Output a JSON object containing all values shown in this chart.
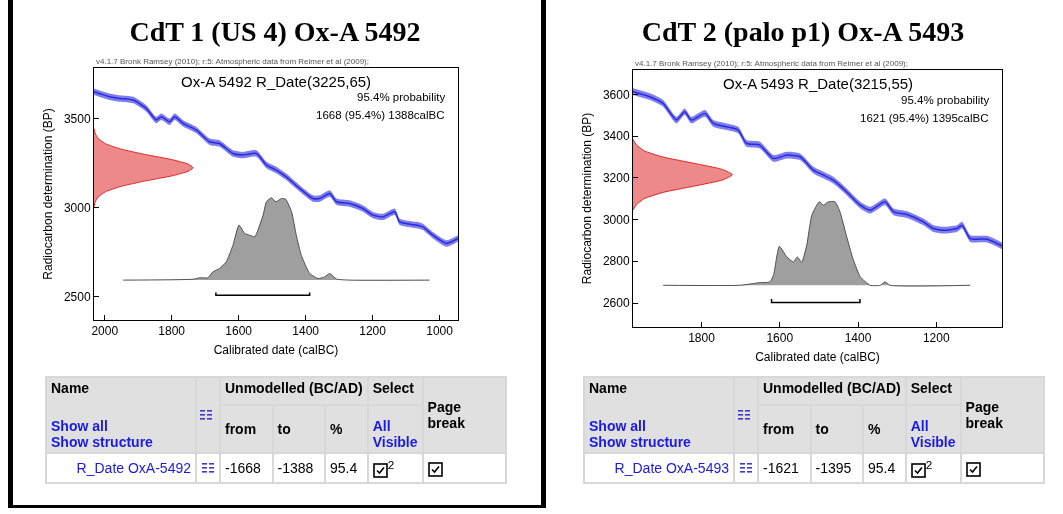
{
  "chart_data": [
    {
      "type": "line",
      "title": "CdT 1 (US 4) Ox-A 5492",
      "xlabel": "Calibrated date (calBC)",
      "ylabel": "Radiocarbon determination (BP)",
      "annotations": [
        "v4.1.7 Bronk Ramsey (2010); r:5: Atmospheric data from Reimer et al (2009);",
        "Ox-A 5492 R_Date(3225,65)",
        "95.4% probability",
        "1668 (95.4%) 1388calBC"
      ],
      "xlim": [
        2032,
        945
      ],
      "ylim": [
        2370,
        3785
      ],
      "xticks": [
        2000,
        1800,
        1600,
        1400,
        1200,
        1000
      ],
      "yticks": [
        2500,
        3000,
        3500
      ],
      "series": [
        {
          "type": "line",
          "color": "#2a2ae0",
          "x": [
            2032,
            1985,
            1955,
            1915,
            1876,
            1846,
            1831,
            1806,
            1791,
            1766,
            1726,
            1687,
            1657,
            1617,
            1588,
            1547,
            1517,
            1488,
            1458,
            1418,
            1378,
            1358,
            1328,
            1308,
            1269,
            1229,
            1199,
            1169,
            1134,
            1119,
            1070,
            1050,
            1020,
            980,
            945
          ],
          "values": [
            3652,
            3624,
            3614,
            3605,
            3558,
            3493,
            3511,
            3483,
            3511,
            3474,
            3436,
            3371,
            3361,
            3305,
            3296,
            3305,
            3240,
            3212,
            3174,
            3109,
            3052,
            3052,
            3080,
            3034,
            3024,
            2996,
            2959,
            2949,
            2978,
            2921,
            2903,
            2893,
            2846,
            2800,
            2828
          ],
          "lower": [
            3634,
            3606,
            3596,
            3587,
            3540,
            3475,
            3493,
            3465,
            3493,
            3456,
            3418,
            3353,
            3343,
            3287,
            3278,
            3287,
            3222,
            3194,
            3156,
            3091,
            3034,
            3034,
            3062,
            3016,
            3006,
            2978,
            2941,
            2931,
            2960,
            2903,
            2885,
            2875,
            2828,
            2782,
            2810
          ],
          "upper": [
            3670,
            3642,
            3632,
            3623,
            3576,
            3511,
            3529,
            3501,
            3529,
            3492,
            3454,
            3389,
            3379,
            3323,
            3314,
            3323,
            3258,
            3230,
            3192,
            3127,
            3070,
            3070,
            3098,
            3052,
            3042,
            3014,
            2977,
            2967,
            2996,
            2939,
            2921,
            2911,
            2864,
            2818,
            2846
          ]
        },
        {
          "type": "area",
          "color": "#e02828",
          "x": [
            2032,
            2029,
            2020,
            1998,
            1952,
            1881,
            1798,
            1751,
            1736,
            1751,
            1798,
            1881,
            1952,
            1998,
            2020,
            2029,
            2032
          ],
          "values": [
            3005,
            3030,
            3060,
            3090,
            3120,
            3150,
            3180,
            3205,
            3225,
            3245,
            3270,
            3300,
            3330,
            3360,
            3390,
            3420,
            3445
          ]
        },
        {
          "type": "area",
          "color": "#505050",
          "x": [
            1945,
            1736,
            1716,
            1692,
            1677,
            1657,
            1637,
            1617,
            1599,
            1582,
            1567,
            1552,
            1527,
            1517,
            1502,
            1489,
            1472,
            1460,
            1442,
            1428,
            1413,
            1388,
            1363,
            1343,
            1328,
            1308,
            1269,
            1030
          ],
          "values": [
            2594,
            2599,
            2607,
            2607,
            2640,
            2659,
            2697,
            2790,
            2903,
            2856,
            2846,
            2837,
            2959,
            3034,
            3056,
            3034,
            3052,
            3049,
            2978,
            2846,
            2734,
            2631,
            2603,
            2612,
            2631,
            2600,
            2594,
            2594
          ]
        },
        {
          "type": "line",
          "color": "#000000",
          "x": [
            1668,
            1668,
            1388,
            1388
          ],
          "values": [
            2524,
            2509,
            2509,
            2524
          ]
        }
      ]
    },
    {
      "type": "other",
      "annotations": [
        "Name",
        "Unmodelled (BC/AD)",
        "Select",
        "Page break",
        "Show all",
        "Show structure",
        "from",
        "to",
        "%",
        "All",
        "Visible",
        "R_Date OxA-5492",
        "-1668",
        "-1388",
        "95.4",
        "2"
      ]
    },
    {
      "type": "line",
      "title": "CdT 2 (palo p1) Ox-A 5493",
      "xlabel": "Calibrated date (calBC)",
      "ylabel": "Radiocarbon determination (BP)",
      "annotations": [
        "v4.1.7 Bronk Ramsey (2010); r:5: Atmospheric data from Reimer et al (2009);",
        "Ox-A 5493 R_Date(3215,55)",
        "95.4% probability",
        "1621 (95.4%) 1395calBC"
      ],
      "xlim": [
        1975,
        1032
      ],
      "ylim": [
        2485,
        3717
      ],
      "xticks": [
        1800,
        1600,
        1400,
        1200
      ],
      "yticks": [
        2600,
        2800,
        3000,
        3200,
        3400,
        3600
      ],
      "series": [
        {
          "type": "line",
          "color": "#2a2ae0",
          "x": [
            1975,
            1932,
            1898,
            1864,
            1843,
            1826,
            1791,
            1770,
            1736,
            1706,
            1685,
            1651,
            1616,
            1582,
            1548,
            1514,
            1488,
            1463,
            1429,
            1394,
            1369,
            1331,
            1309,
            1275,
            1233,
            1207,
            1181,
            1147,
            1134,
            1113,
            1070,
            1032
          ],
          "values": [
            3613,
            3589,
            3557,
            3477,
            3517,
            3477,
            3509,
            3461,
            3445,
            3429,
            3365,
            3357,
            3293,
            3309,
            3301,
            3237,
            3213,
            3189,
            3133,
            3069,
            3045,
            3085,
            3037,
            3024,
            2989,
            2957,
            2949,
            2957,
            2973,
            2909,
            2906,
            2874
          ],
          "lower": [
            3597,
            3573,
            3541,
            3461,
            3501,
            3461,
            3493,
            3445,
            3429,
            3413,
            3349,
            3341,
            3277,
            3293,
            3285,
            3221,
            3197,
            3173,
            3117,
            3053,
            3029,
            3069,
            3021,
            3008,
            2973,
            2941,
            2933,
            2941,
            2957,
            2893,
            2890,
            2858
          ],
          "upper": [
            3629,
            3605,
            3573,
            3493,
            3533,
            3493,
            3525,
            3477,
            3461,
            3445,
            3381,
            3373,
            3309,
            3325,
            3317,
            3253,
            3229,
            3205,
            3149,
            3085,
            3061,
            3101,
            3053,
            3040,
            3005,
            2973,
            2965,
            2973,
            2989,
            2925,
            2922,
            2890
          ]
        },
        {
          "type": "area",
          "color": "#e02828",
          "x": [
            1975,
            1967,
            1947,
            1899,
            1820,
            1746,
            1721,
            1746,
            1820,
            1899,
            1947,
            1967,
            1975
          ],
          "values": [
            3045,
            3070,
            3100,
            3130,
            3160,
            3190,
            3215,
            3240,
            3270,
            3300,
            3330,
            3360,
            3385
          ]
        },
        {
          "type": "area",
          "color": "#505050",
          "x": [
            1898,
            1702,
            1668,
            1651,
            1625,
            1616,
            1601,
            1582,
            1565,
            1555,
            1544,
            1531,
            1518,
            1499,
            1488,
            1476,
            1459,
            1446,
            1430,
            1413,
            1394,
            1369,
            1343,
            1331,
            1318,
            1113
          ],
          "values": [
            2685,
            2685,
            2693,
            2698,
            2701,
            2733,
            2872,
            2821,
            2797,
            2821,
            2795,
            2877,
            3021,
            3085,
            3069,
            3085,
            3085,
            3037,
            2925,
            2813,
            2725,
            2685,
            2685,
            2701,
            2685,
            2685
          ]
        },
        {
          "type": "line",
          "color": "#000000",
          "x": [
            1621,
            1621,
            1395,
            1395
          ],
          "values": [
            2619,
            2602,
            2602,
            2619
          ]
        }
      ]
    },
    {
      "type": "other",
      "annotations": [
        "Name",
        "Unmodelled (BC/AD)",
        "Select",
        "Page break",
        "Show all",
        "Show structure",
        "from",
        "to",
        "%",
        "All",
        "Visible",
        "R_Date OxA-5493",
        "-1621",
        "-1395",
        "95.4",
        "2"
      ]
    }
  ]
}
